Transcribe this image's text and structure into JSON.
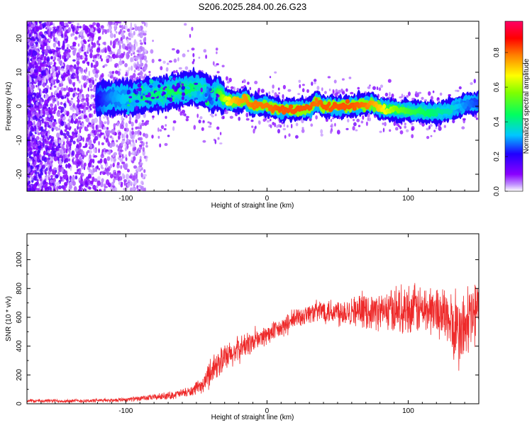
{
  "figure": {
    "title": "S206.2025.284.00.26.G23"
  },
  "chart_data": [
    {
      "type": "heatmap",
      "title": "S206.2025.284.00.26.G23",
      "xlabel": "Height of straight line (km)",
      "ylabel": "Frequency (Hz)",
      "xlim": [
        -170,
        150
      ],
      "ylim": [
        -25,
        25
      ],
      "xticks": [
        -100,
        0,
        100
      ],
      "yticks": [
        -20,
        -10,
        0,
        10,
        20
      ],
      "colorbar": {
        "label": "Normalized spectral amplitude",
        "range": [
          0.0,
          0.98
        ],
        "ticks": [
          0.0,
          0.2,
          0.4,
          0.6,
          0.8
        ],
        "tick_labels": [
          "0.0",
          "0.2",
          "0.4",
          "0.6",
          "0.8"
        ],
        "colors": [
          "#ffffff",
          "#8a00ff",
          "#2000ff",
          "#00c8ff",
          "#00ff40",
          "#ffff00",
          "#ff8000",
          "#ff0000",
          "#ff0066"
        ]
      },
      "ridge": {
        "x": [
          -120,
          -110,
          -100,
          -90,
          -80,
          -70,
          -60,
          -50,
          -45,
          -40,
          -35,
          -30,
          -25,
          -20,
          -15,
          -10,
          -5,
          0,
          10,
          20,
          30,
          35,
          40,
          50,
          60,
          70,
          75,
          80,
          90,
          100,
          110,
          120,
          130,
          140,
          150
        ],
        "y": [
          2,
          2.5,
          2.5,
          3,
          3.5,
          4,
          5,
          5.5,
          5,
          3,
          4,
          2,
          1.5,
          1.5,
          2,
          0,
          0.5,
          0,
          -1,
          -1,
          -0.5,
          1.5,
          0,
          0,
          0,
          0.5,
          1,
          -0.5,
          -1,
          -1.5,
          -1.5,
          -2,
          -1,
          0.5,
          1
        ],
        "amplitude": [
          0.25,
          0.35,
          0.4,
          0.45,
          0.5,
          0.55,
          0.55,
          0.5,
          0.45,
          0.3,
          0.55,
          0.75,
          0.85,
          0.9,
          0.92,
          0.95,
          0.95,
          0.95,
          0.98,
          0.98,
          0.98,
          0.95,
          0.98,
          0.98,
          0.98,
          0.95,
          0.9,
          0.85,
          0.7,
          0.6,
          0.55,
          0.5,
          0.45,
          0.35,
          0.3
        ]
      },
      "noise_region_km": [
        -170,
        -95
      ]
    },
    {
      "type": "line",
      "title": "",
      "xlabel": "Height of straight line (km)",
      "ylabel": "SNR (10 * v/v)",
      "xlim": [
        -170,
        150
      ],
      "ylim": [
        0,
        1180
      ],
      "xticks": [
        -100,
        0,
        100
      ],
      "yticks": [
        0,
        200,
        400,
        600,
        800,
        1000
      ],
      "color": "#ee2a2a",
      "series": [
        {
          "name": "SNR",
          "x": [
            -170,
            -150,
            -130,
            -110,
            -90,
            -70,
            -55,
            -45,
            -40,
            -35,
            -30,
            -25,
            -20,
            -10,
            0,
            10,
            20,
            30,
            40,
            50,
            60,
            70,
            80,
            90,
            100,
            110,
            120,
            125,
            130,
            135,
            140,
            145,
            150
          ],
          "values": [
            20,
            20,
            20,
            25,
            35,
            55,
            80,
            130,
            230,
            280,
            310,
            340,
            380,
            430,
            480,
            520,
            590,
            630,
            650,
            640,
            650,
            640,
            640,
            650,
            660,
            650,
            650,
            630,
            550,
            480,
            520,
            600,
            650
          ],
          "spread": [
            15,
            15,
            15,
            15,
            20,
            30,
            40,
            60,
            130,
            110,
            120,
            110,
            110,
            90,
            80,
            80,
            90,
            80,
            100,
            120,
            120,
            130,
            150,
            180,
            200,
            200,
            200,
            220,
            260,
            300,
            320,
            300,
            280
          ]
        }
      ]
    }
  ]
}
